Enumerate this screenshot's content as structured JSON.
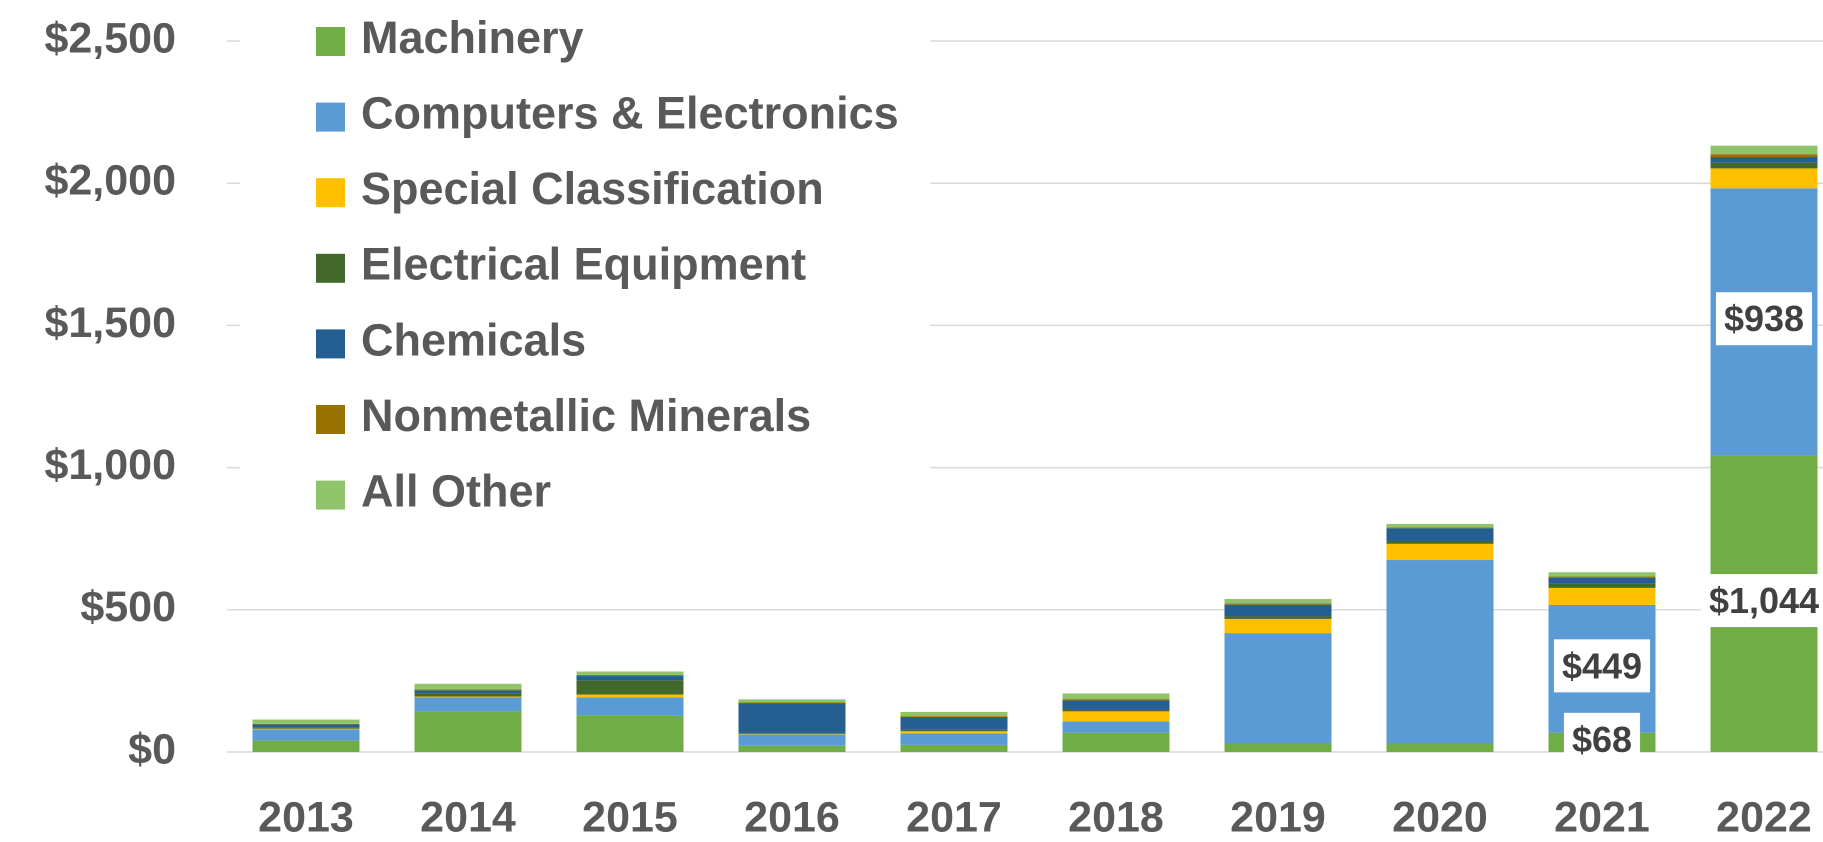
{
  "chart_data": {
    "type": "stacked_bar",
    "categories": [
      "2013",
      "2014",
      "2015",
      "2016",
      "2017",
      "2018",
      "2019",
      "2020",
      "2021",
      "2022"
    ],
    "series": [
      {
        "name": "Machinery",
        "color": "#70ad47",
        "values": [
          40,
          143,
          127,
          22,
          25,
          68,
          30,
          30,
          68,
          1044
        ],
        "value_labels": [
          null,
          null,
          null,
          null,
          null,
          null,
          null,
          null,
          "$68",
          "$1,044"
        ]
      },
      {
        "name": "Computers & Electronics",
        "color": "#5b9bd5",
        "values": [
          40,
          49,
          65,
          40,
          40,
          40,
          388,
          645,
          449,
          938
        ],
        "value_labels": [
          null,
          null,
          null,
          null,
          null,
          null,
          null,
          null,
          "$449",
          "$938"
        ]
      },
      {
        "name": "Special Classification",
        "color": "#ffc000",
        "values": [
          2,
          3,
          10,
          2,
          8,
          35,
          50,
          57,
          60,
          70
        ]
      },
      {
        "name": "Electrical Equipment",
        "color": "#43682b",
        "values": [
          5,
          12,
          50,
          3,
          5,
          8,
          10,
          10,
          15,
          20
        ]
      },
      {
        "name": "Chemicals",
        "color": "#255e91",
        "values": [
          10,
          10,
          15,
          105,
          45,
          30,
          40,
          45,
          20,
          20
        ]
      },
      {
        "name": "Nonmetallic Minerals",
        "color": "#997300",
        "values": [
          2,
          3,
          4,
          3,
          3,
          5,
          5,
          3,
          5,
          10
        ]
      },
      {
        "name": "All Other",
        "color": "#8fc46a",
        "values": [
          15,
          20,
          12,
          10,
          15,
          20,
          15,
          12,
          15,
          30
        ]
      }
    ],
    "ylim": [
      0,
      2500
    ],
    "yticks": [
      {
        "value": 0,
        "label": "$0"
      },
      {
        "value": 500,
        "label": "$500"
      },
      {
        "value": 1000,
        "label": "$1,000"
      },
      {
        "value": 1500,
        "label": "$1,500"
      },
      {
        "value": 2000,
        "label": "$2,000"
      },
      {
        "value": 2500,
        "label": "$2,500"
      }
    ],
    "grid": true,
    "legend": "upper left"
  }
}
